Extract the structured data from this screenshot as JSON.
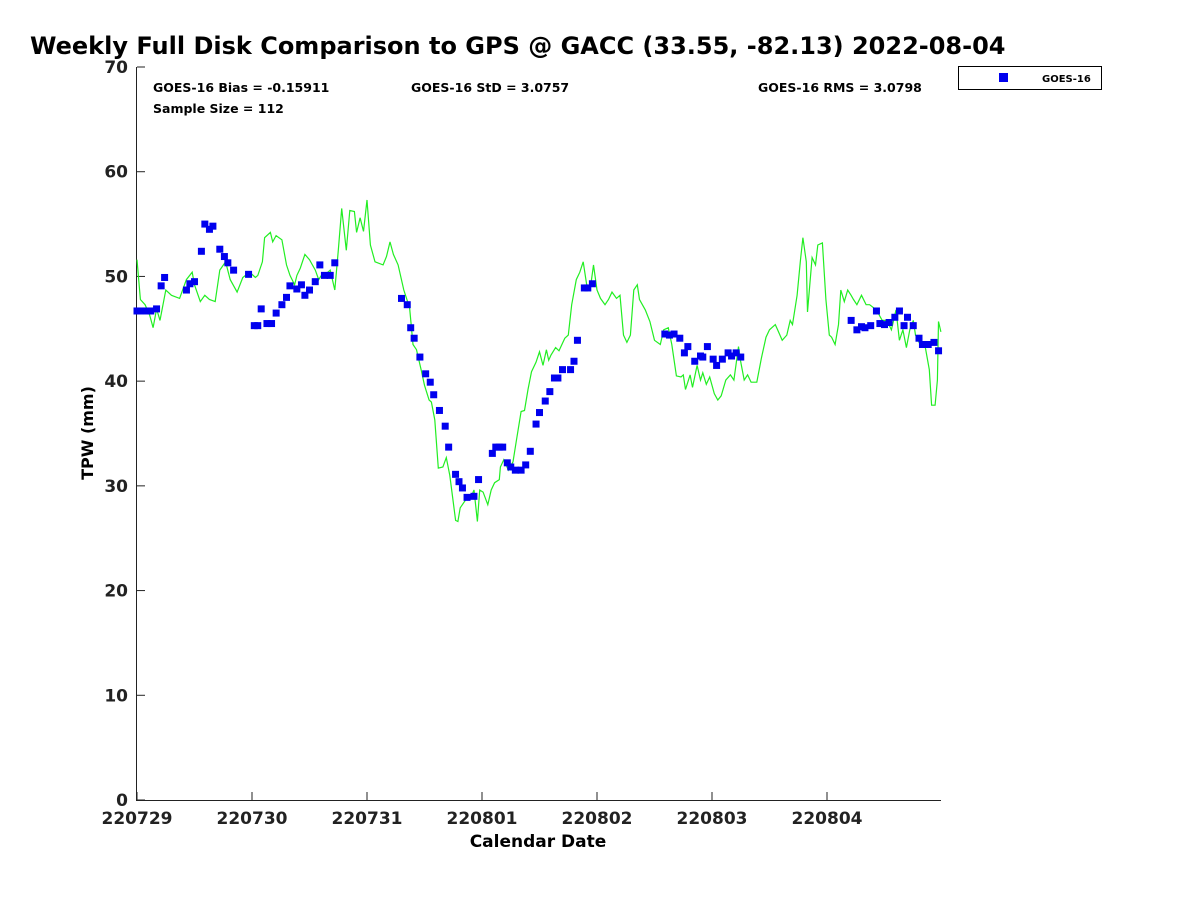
{
  "chart_data": {
    "type": "scatter",
    "title": "Weekly Full Disk Comparison to GPS @ GACC (33.55, -82.13) 2022-08-04",
    "xlabel": "Calendar Date",
    "ylabel": "TPW (mm)",
    "x_units": "days since 220729",
    "xlim": [
      0,
      7
    ],
    "ylim": [
      0,
      70
    ],
    "x_tick_values": [
      0,
      1,
      2,
      3,
      4,
      5,
      6
    ],
    "x_tick_labels": [
      "220729",
      "220730",
      "220731",
      "220801",
      "220802",
      "220803",
      "220804"
    ],
    "y_ticks": [
      0,
      10,
      20,
      30,
      40,
      50,
      60,
      70
    ],
    "grid": false,
    "legend": {
      "position": "top-right",
      "entries": [
        "GOES-16"
      ]
    },
    "annotations": {
      "bias": "GOES-16 Bias = -0.15911",
      "std": "GOES-16 StD = 3.0757",
      "rms": "GOES-16 RMS = 3.0798",
      "sample": "Sample Size = 112"
    },
    "colors": {
      "goes": "#0000ee",
      "gps": "#22ee22"
    },
    "series": [
      {
        "name": "GOES-16",
        "kind": "points",
        "x": [
          0,
          0.03,
          0.08,
          0.12,
          0.17,
          0.21,
          0.24,
          0.43,
          0.46,
          0.5,
          0.56,
          0.59,
          0.63,
          0.66,
          0.72,
          0.76,
          0.79,
          0.84,
          0.97,
          1.02,
          1.05,
          1.08,
          1.13,
          1.17,
          1.21,
          1.26,
          1.3,
          1.33,
          1.39,
          1.43,
          1.46,
          1.5,
          1.55,
          1.59,
          1.63,
          1.68,
          1.72,
          2.3,
          2.35,
          2.38,
          2.41,
          2.46,
          2.51,
          2.55,
          2.58,
          2.63,
          2.68,
          2.71,
          2.77,
          2.8,
          2.83,
          2.87,
          2.93,
          2.97,
          3.09,
          3.12,
          3.15,
          3.18,
          3.22,
          3.25,
          3.29,
          3.34,
          3.38,
          3.42,
          3.47,
          3.5,
          3.55,
          3.59,
          3.63,
          3.66,
          3.7,
          3.77,
          3.8,
          3.83,
          3.89,
          3.92,
          3.96,
          4.59,
          4.63,
          4.67,
          4.72,
          4.76,
          4.79,
          4.85,
          4.9,
          4.92,
          4.96,
          5.01,
          5.04,
          5.09,
          5.14,
          5.17,
          5.21,
          5.25,
          6.21,
          6.26,
          6.3,
          6.33,
          6.38,
          6.43,
          6.46,
          6.5,
          6.54,
          6.59,
          6.63,
          6.67,
          6.7,
          6.75,
          6.8,
          6.83,
          6.88,
          6.93,
          6.97
        ],
        "y": [
          46.7,
          46.7,
          46.7,
          46.7,
          46.9,
          49.1,
          49.9,
          48.7,
          49.3,
          49.5,
          52.4,
          55.0,
          54.5,
          54.8,
          52.6,
          51.9,
          51.3,
          50.6,
          50.2,
          45.3,
          45.3,
          46.9,
          45.5,
          45.5,
          46.5,
          47.3,
          48.0,
          49.1,
          48.8,
          49.2,
          48.2,
          48.7,
          49.5,
          51.1,
          50.1,
          50.1,
          51.3,
          47.9,
          47.3,
          45.1,
          44.1,
          42.3,
          40.7,
          39.9,
          38.7,
          37.2,
          35.7,
          33.7,
          31.1,
          30.4,
          29.8,
          28.9,
          29.0,
          30.6,
          33.1,
          33.7,
          33.7,
          33.7,
          32.2,
          31.8,
          31.5,
          31.5,
          32.0,
          33.3,
          35.9,
          37.0,
          38.1,
          39.0,
          40.3,
          40.3,
          41.1,
          41.1,
          41.9,
          43.9,
          48.9,
          48.9,
          49.3,
          44.5,
          44.4,
          44.5,
          44.1,
          42.7,
          43.3,
          41.9,
          42.4,
          42.3,
          43.3,
          42.1,
          41.5,
          42.1,
          42.7,
          42.4,
          42.7,
          42.3,
          45.8,
          44.9,
          45.2,
          45.1,
          45.3,
          46.7,
          45.5,
          45.4,
          45.6,
          46.1,
          46.7,
          45.3,
          46.1,
          45.3,
          44.1,
          43.5,
          43.5,
          43.7,
          42.9
        ]
      },
      {
        "name": "GPS",
        "kind": "line",
        "x": [
          0,
          0.03,
          0.07,
          0.11,
          0.14,
          0.17,
          0.2,
          0.25,
          0.3,
          0.37,
          0.43,
          0.48,
          0.5,
          0.55,
          0.59,
          0.63,
          0.68,
          0.72,
          0.77,
          0.81,
          0.87,
          0.92,
          0.98,
          1.03,
          1.05,
          1.09,
          1.11,
          1.16,
          1.18,
          1.21,
          1.26,
          1.3,
          1.33,
          1.37,
          1.39,
          1.42,
          1.46,
          1.5,
          1.55,
          1.58,
          1.61,
          1.63,
          1.68,
          1.72,
          1.75,
          1.78,
          1.82,
          1.85,
          1.89,
          1.91,
          1.94,
          1.97,
          2.0,
          2.03,
          2.07,
          2.14,
          2.17,
          2.2,
          2.23,
          2.27,
          2.32,
          2.37,
          2.4,
          2.43,
          2.47,
          2.5,
          2.54,
          2.56,
          2.59,
          2.62,
          2.66,
          2.69,
          2.72,
          2.77,
          2.79,
          2.81,
          2.86,
          2.9,
          2.93,
          2.96,
          2.98,
          3.01,
          3.05,
          3.08,
          3.11,
          3.15,
          3.16,
          3.19,
          3.23,
          3.27,
          3.3,
          3.34,
          3.37,
          3.4,
          3.43,
          3.47,
          3.5,
          3.53,
          3.56,
          3.58,
          3.6,
          3.64,
          3.67,
          3.72,
          3.75,
          3.78,
          3.82,
          3.85,
          3.88,
          3.91,
          3.94,
          3.97,
          4.0,
          4.03,
          4.07,
          4.1,
          4.13,
          4.17,
          4.2,
          4.23,
          4.26,
          4.29,
          4.32,
          4.35,
          4.37,
          4.42,
          4.46,
          4.5,
          4.55,
          4.58,
          4.62,
          4.65,
          4.69,
          4.73,
          4.75,
          4.77,
          4.81,
          4.83,
          4.87,
          4.9,
          4.92,
          4.95,
          4.98,
          5.02,
          5.05,
          5.08,
          5.12,
          5.16,
          5.19,
          5.23,
          5.25,
          5.28,
          5.31,
          5.34,
          5.39,
          5.43,
          5.47,
          5.5,
          5.55,
          5.57,
          5.61,
          5.65,
          5.68,
          5.7,
          5.74,
          5.77,
          5.79,
          5.82,
          5.83,
          5.87,
          5.9,
          5.92,
          5.96,
          5.99,
          6.02,
          6.04,
          6.07,
          6.1,
          6.12,
          6.15,
          6.18,
          6.21,
          6.23,
          6.26,
          6.3,
          6.34,
          6.37,
          6.43,
          6.48,
          6.52,
          6.56,
          6.6,
          6.63,
          6.66,
          6.69,
          6.72,
          6.75,
          6.77,
          6.81,
          6.85,
          6.89,
          6.91,
          6.94,
          6.96,
          6.97,
          6.99
        ],
        "y": [
          51.6,
          47.8,
          47.3,
          46.3,
          45.1,
          46.9,
          45.8,
          48.7,
          48.2,
          47.9,
          49.7,
          50.4,
          49.2,
          47.6,
          48.2,
          47.8,
          47.6,
          50.6,
          51.4,
          49.7,
          48.5,
          49.9,
          50.4,
          49.9,
          50.1,
          51.4,
          53.7,
          54.2,
          53.3,
          53.9,
          53.5,
          51.1,
          50.1,
          49.2,
          50.1,
          50.8,
          52.1,
          51.6,
          50.6,
          49.7,
          50.2,
          50.1,
          50.6,
          48.7,
          52.5,
          56.5,
          52.5,
          56.3,
          56.2,
          54.2,
          55.6,
          54.3,
          57.3,
          53.0,
          51.4,
          51.1,
          51.9,
          53.3,
          52.1,
          51.1,
          48.7,
          47.0,
          43.5,
          43.0,
          41.1,
          39.6,
          38.2,
          38.0,
          36.3,
          31.7,
          31.8,
          32.7,
          31.0,
          26.7,
          26.6,
          27.9,
          28.7,
          28.8,
          29.6,
          26.6,
          29.6,
          29.4,
          28.2,
          29.6,
          30.3,
          30.6,
          31.8,
          32.5,
          31.5,
          32.3,
          34.4,
          37.1,
          37.2,
          39.2,
          40.9,
          41.8,
          42.8,
          41.5,
          43.0,
          42.0,
          42.5,
          43.2,
          42.9,
          44.1,
          44.4,
          47.3,
          49.7,
          50.4,
          51.4,
          49.2,
          48.7,
          51.1,
          48.7,
          47.9,
          47.3,
          47.8,
          48.5,
          47.9,
          48.2,
          44.4,
          43.7,
          44.4,
          48.7,
          49.2,
          47.8,
          46.8,
          45.7,
          43.9,
          43.5,
          44.9,
          45.1,
          43.5,
          40.5,
          40.4,
          40.6,
          39.2,
          40.6,
          39.4,
          41.5,
          40.1,
          40.8,
          39.7,
          40.4,
          38.8,
          38.2,
          38.6,
          40.1,
          40.6,
          40.1,
          43.3,
          41.8,
          40.1,
          40.6,
          39.9,
          39.9,
          42.2,
          44.2,
          44.9,
          45.4,
          44.9,
          43.9,
          44.4,
          45.8,
          45.4,
          48.2,
          51.6,
          53.7,
          51.4,
          46.6,
          51.8,
          51.1,
          53.0,
          53.2,
          47.8,
          44.4,
          44.2,
          43.5,
          45.4,
          48.7,
          47.6,
          48.7,
          48.2,
          47.8,
          47.3,
          48.2,
          47.3,
          47.3,
          46.8,
          45.8,
          45.8,
          44.9,
          46.8,
          43.9,
          44.9,
          43.2,
          44.9,
          45.8,
          44.4,
          43.5,
          43.5,
          41.1,
          37.7,
          37.7,
          40.1,
          45.7,
          44.7
        ]
      }
    ]
  }
}
